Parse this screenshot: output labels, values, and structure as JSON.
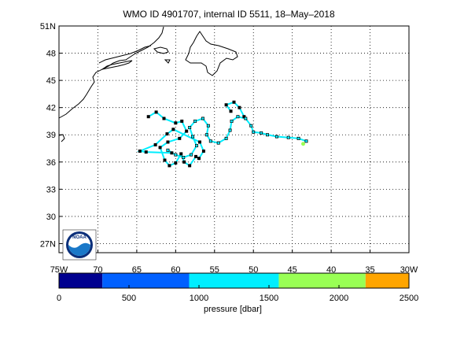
{
  "title": "WMO ID 4901707, internal ID 5511, 18–May–2018",
  "map": {
    "lon_range": [
      -75,
      -30
    ],
    "lat_range": [
      26,
      51
    ],
    "x_tick_values": [
      -75,
      -70,
      -65,
      -60,
      -55,
      -50,
      -45,
      -40,
      -35,
      -30
    ],
    "x_tick_labels": [
      "75W",
      "70",
      "65",
      "60",
      "55",
      "50",
      "45",
      "40",
      "35",
      "30W"
    ],
    "y_tick_values": [
      27,
      30,
      33,
      36,
      39,
      42,
      45,
      48,
      51
    ],
    "y_tick_labels": [
      "27N",
      "30",
      "33",
      "36",
      "39",
      "42",
      "45",
      "48",
      "51N"
    ],
    "grid": true
  },
  "colorbar": {
    "label": "pressure [dbar]",
    "tick_values": [
      0,
      500,
      1000,
      1500,
      2000,
      2500
    ],
    "tick_labels": [
      "0",
      "500",
      "1000",
      "1500",
      "2000",
      "2500"
    ],
    "range": [
      0,
      2500
    ],
    "bands": [
      {
        "from": 0,
        "to": 310,
        "color": "#00008f"
      },
      {
        "from": 310,
        "to": 930,
        "color": "#0060ff"
      },
      {
        "from": 930,
        "to": 1570,
        "color": "#00eeff"
      },
      {
        "from": 1570,
        "to": 2190,
        "color": "#99ff55"
      },
      {
        "from": 2190,
        "to": 2500,
        "color": "#ffa500"
      }
    ]
  },
  "logo": {
    "text": "NOAA",
    "icon": "noaa-logo-icon"
  },
  "chart_data": {
    "type": "scatter",
    "title": "WMO ID 4901707, internal ID 5511, 18–May–2018",
    "xlabel": "",
    "ylabel": "",
    "xlim": [
      -75,
      -30
    ],
    "ylim": [
      26,
      51
    ],
    "trajectory": [
      [
        -61.0,
        37.3
      ],
      [
        -60.0,
        36.8
      ],
      [
        -59.0,
        36.5
      ],
      [
        -58.0,
        36.8
      ],
      [
        -57.3,
        37.8
      ],
      [
        -57.8,
        38.8
      ],
      [
        -58.2,
        39.8
      ],
      [
        -57.5,
        40.5
      ],
      [
        -56.5,
        40.8
      ],
      [
        -55.8,
        40.0
      ],
      [
        -56.0,
        39.0
      ],
      [
        -55.5,
        38.3
      ],
      [
        -54.5,
        38.1
      ],
      [
        -53.5,
        38.6
      ],
      [
        -53.0,
        39.5
      ],
      [
        -52.8,
        40.5
      ],
      [
        -52.0,
        41.0
      ],
      [
        -51.0,
        40.8
      ],
      [
        -50.3,
        40.0
      ],
      [
        -50.0,
        39.3
      ],
      [
        -49.0,
        39.2
      ],
      [
        -48.2,
        39.0
      ],
      [
        -47.0,
        38.8
      ],
      [
        -45.5,
        38.7
      ],
      [
        -44.2,
        38.6
      ],
      [
        -43.2,
        38.3
      ]
    ],
    "loop_track": [
      [
        -52.9,
        41.6
      ],
      [
        -53.5,
        42.3
      ],
      [
        -52.5,
        42.6
      ],
      [
        -51.8,
        42.0
      ],
      [
        -51.2,
        41.0
      ]
    ],
    "west_cluster": [
      [
        -63.5,
        41.0
      ],
      [
        -62.5,
        41.5
      ],
      [
        -61.5,
        40.8
      ],
      [
        -60.0,
        40.3
      ],
      [
        -59.2,
        40.5
      ],
      [
        -58.6,
        39.4
      ],
      [
        -59.5,
        38.6
      ],
      [
        -61.0,
        38.2
      ],
      [
        -62.0,
        37.6
      ],
      [
        -61.4,
        36.2
      ],
      [
        -60.8,
        35.6
      ],
      [
        -60.0,
        35.9
      ],
      [
        -59.3,
        36.9
      ],
      [
        -58.9,
        36.0
      ],
      [
        -58.2,
        35.6
      ],
      [
        -57.4,
        36.6
      ],
      [
        -57.0,
        36.4
      ],
      [
        -56.4,
        37.2
      ],
      [
        -56.9,
        38.2
      ],
      [
        -60.3,
        39.6
      ],
      [
        -61.1,
        39.1
      ],
      [
        -62.6,
        37.9
      ],
      [
        -64.6,
        37.2
      ],
      [
        -63.8,
        37.1
      ],
      [
        -60.5,
        37.0
      ]
    ],
    "marker_colors": {
      "track": "#00eeff",
      "profile": "#000000",
      "latest": "#99ff55"
    },
    "latest_position": [
      -43.6,
      38.0
    ]
  }
}
